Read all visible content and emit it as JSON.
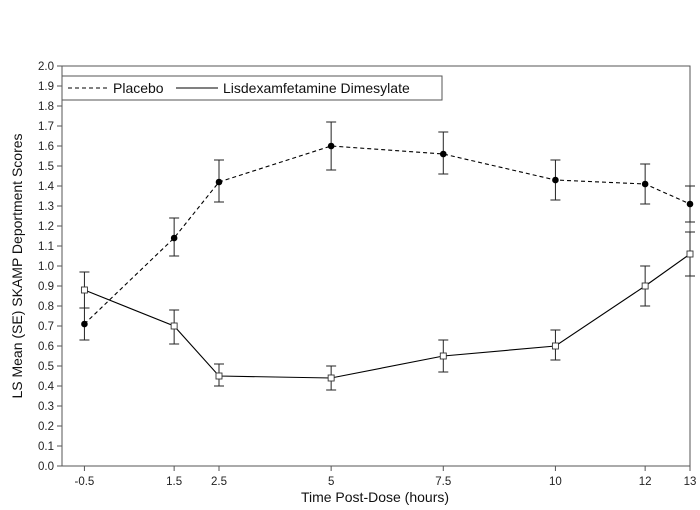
{
  "chart_data": {
    "type": "line",
    "xlabel": "Time Post-Dose (hours)",
    "ylabel": "LS Mean (SE) SKAMP Deportment Scores",
    "x": [
      -0.5,
      1.5,
      2.5,
      5,
      7.5,
      10,
      12,
      13
    ],
    "x_tick_labels": [
      "-0.5",
      "1.5",
      "2.5",
      "5",
      "7.5",
      "10",
      "12",
      "13"
    ],
    "xlim": [
      -1,
      13
    ],
    "ylim": [
      0,
      2.0
    ],
    "y_ticks": [
      "0.0",
      "0.1",
      "0.2",
      "0.3",
      "0.4",
      "0.5",
      "0.6",
      "0.7",
      "0.8",
      "0.9",
      "1.0",
      "1.1",
      "1.2",
      "1.3",
      "1.4",
      "1.5",
      "1.6",
      "1.7",
      "1.8",
      "1.9",
      "2.0"
    ],
    "grid": false,
    "legend_position": "top-left",
    "series": [
      {
        "name": "Placebo",
        "line_style": "dashed",
        "marker": "filled-circle",
        "color": "#000000",
        "values": [
          0.71,
          1.14,
          1.42,
          1.6,
          1.56,
          1.43,
          1.41,
          1.31
        ],
        "error_low": [
          0.63,
          1.05,
          1.32,
          1.48,
          1.46,
          1.33,
          1.31,
          1.22
        ],
        "error_high": [
          0.79,
          1.24,
          1.53,
          1.72,
          1.67,
          1.53,
          1.51,
          1.4
        ]
      },
      {
        "name": "Lisdexamfetamine Dimesylate",
        "line_style": "solid",
        "marker": "open-square",
        "color": "#000000",
        "values": [
          0.88,
          0.7,
          0.45,
          0.44,
          0.55,
          0.6,
          0.9,
          1.06
        ],
        "error_low": [
          0.79,
          0.61,
          0.4,
          0.38,
          0.47,
          0.53,
          0.8,
          0.95
        ],
        "error_high": [
          0.97,
          0.78,
          0.51,
          0.5,
          0.63,
          0.68,
          1.0,
          1.17
        ]
      }
    ]
  }
}
